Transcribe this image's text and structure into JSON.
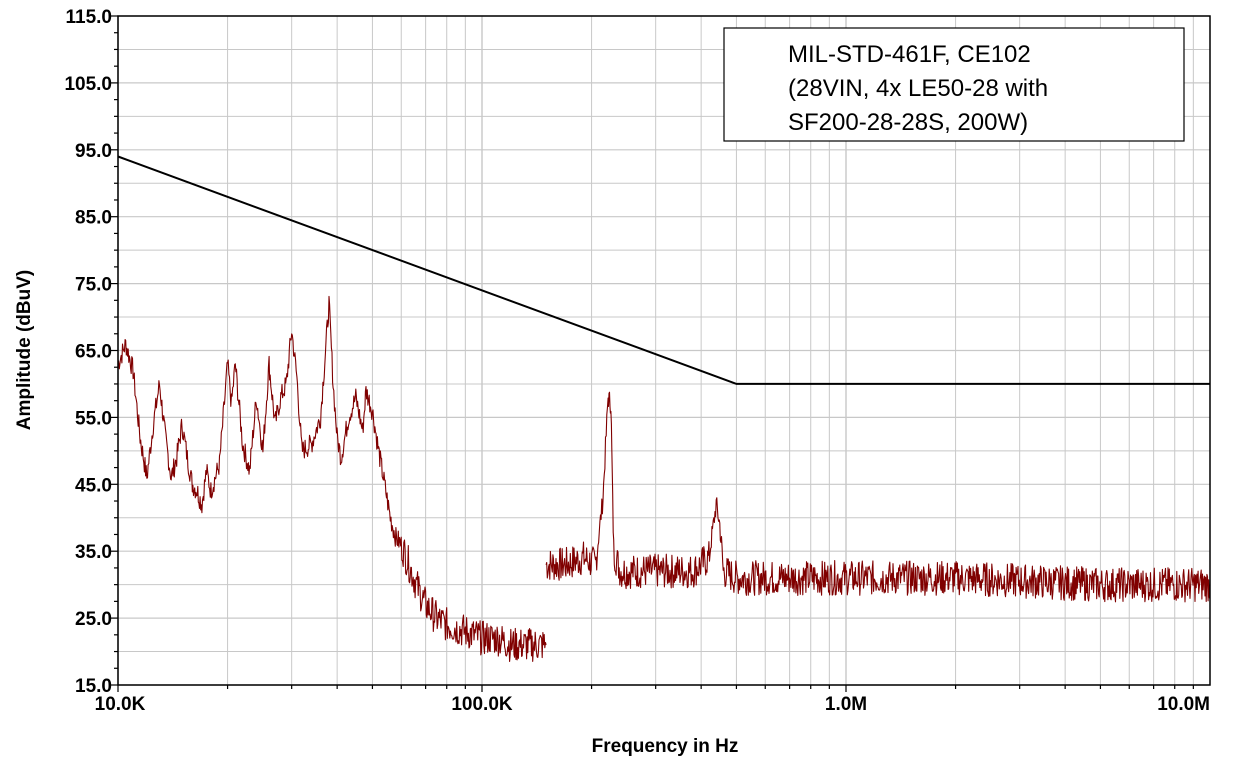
{
  "chart_data": {
    "type": "line",
    "title": "",
    "xlabel": "Frequency in Hz",
    "ylabel": "Amplitude (dBuV)",
    "xscale": "log",
    "xlim": [
      10000,
      10000000
    ],
    "ylim": [
      15,
      115
    ],
    "grid": true,
    "x_tick_values": [
      10000,
      100000,
      1000000,
      10000000
    ],
    "x_tick_labels": [
      "10.0K",
      "100.0K",
      "1.0M",
      "10.0M"
    ],
    "y_tick_values": [
      15,
      25,
      35,
      45,
      55,
      65,
      75,
      85,
      95,
      105,
      115
    ],
    "y_tick_labels": [
      "15.0",
      "25.0",
      "35.0",
      "45.0",
      "55.0",
      "65.0",
      "75.0",
      "85.0",
      "95.0",
      "105.0",
      "115.0"
    ],
    "annotation": [
      "MIL-STD-461F, CE102",
      "(28VIN, 4x LE50-28 with",
      "SF200-28-28S, 200W)"
    ],
    "colors": {
      "limit": "#000000",
      "emission": "#800000",
      "grid": "#c8c8c8"
    },
    "series": [
      {
        "role": "limit",
        "x": [
          10000,
          500000,
          10000000
        ],
        "y": [
          94,
          60,
          60
        ]
      },
      {
        "role": "emission",
        "segments": [
          {
            "x": [
              10000,
              10500,
              11000,
              11500,
              12000,
              12500,
              13000,
              13500,
              14000,
              14500,
              15000,
              15500,
              16000,
              16500,
              17000,
              17500,
              18000,
              19000,
              20000,
              20500,
              21000,
              22000,
              23000,
              24000,
              25000,
              26000,
              27000,
              28000,
              29000,
              30000,
              31000,
              32000,
              34000,
              36000,
              38000,
              39000,
              40000,
              41000,
              43000,
              45000,
              47000,
              48000,
              50000,
              52000,
              54000,
              56000,
              58000,
              60000,
              63000,
              66000,
              70000,
              75000,
              80000,
              90000,
              100000,
              110000,
              120000,
              130000,
              140000,
              150000
            ],
            "y": [
              63,
              66,
              62,
              52,
              46,
              54,
              60,
              52,
              46,
              49,
              54,
              49,
              45,
              44,
              42,
              47,
              44,
              48,
              63,
              57,
              63,
              51,
              47,
              58,
              50,
              63,
              54,
              58,
              60,
              68,
              61,
              50,
              51,
              55,
              72,
              60,
              52,
              49,
              55,
              58,
              53,
              59,
              56,
              50,
              45,
              40,
              37,
              36,
              33,
              30,
              27,
              25,
              24,
              23,
              22,
              22,
              21,
              21,
              21,
              21
            ]
          },
          {
            "x": [
              150000,
              170000,
              190000,
              205000,
              215000,
              222000,
              226000,
              230000,
              240000,
              300000,
              380000,
              420000,
              440000,
              450000,
              460000,
              500000,
              700000,
              1000000,
              2000000,
              5000000,
              10000000
            ],
            "y": [
              33,
              33,
              34,
              33,
              43,
              58,
              57,
              35,
              32,
              32,
              32,
              34,
              42,
              39,
              32,
              31,
              31,
              31,
              31,
              30,
              30
            ]
          }
        ]
      }
    ]
  }
}
